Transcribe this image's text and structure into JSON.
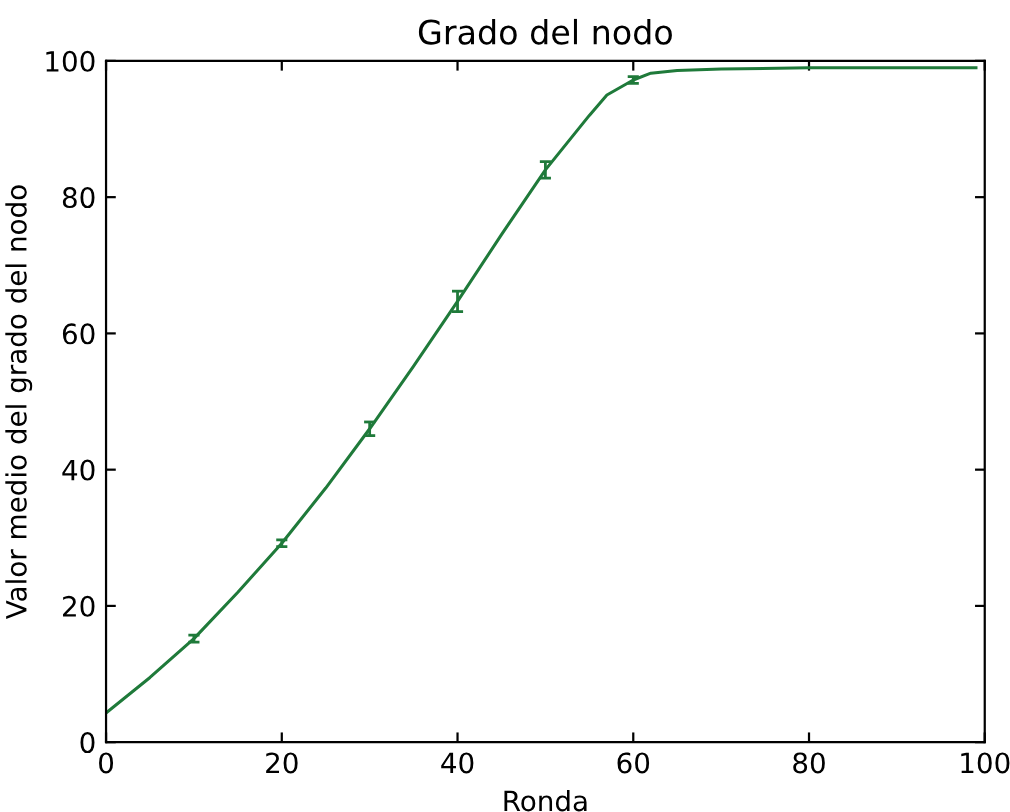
{
  "chart_data": {
    "type": "line",
    "title": "Grado del nodo",
    "xlabel": "Ronda",
    "ylabel": "Valor medio del grado del nodo",
    "xlim": [
      0,
      100
    ],
    "ylim": [
      0,
      100
    ],
    "xticks": [
      0,
      20,
      40,
      60,
      80,
      100
    ],
    "yticks": [
      0,
      20,
      40,
      60,
      80,
      100
    ],
    "grid": false,
    "marker": "none",
    "line_style": "solid",
    "series": [
      {
        "color": "#1f7a3a",
        "x": [
          0,
          5,
          10,
          15,
          20,
          25,
          30,
          35,
          40,
          45,
          50,
          55,
          57,
          60,
          62,
          65,
          70,
          80,
          90,
          99
        ],
        "values": [
          4.3,
          9.5,
          15.2,
          22,
          29.2,
          37.3,
          46,
          55.2,
          64.7,
          74.5,
          84,
          92,
          95,
          97.2,
          98.2,
          98.6,
          98.8,
          99,
          99,
          99
        ],
        "errors": [
          null,
          null,
          0.5,
          null,
          0.5,
          null,
          1,
          null,
          1.5,
          null,
          1.2,
          null,
          null,
          0.5,
          null,
          null,
          null,
          null,
          null,
          null
        ]
      }
    ]
  }
}
